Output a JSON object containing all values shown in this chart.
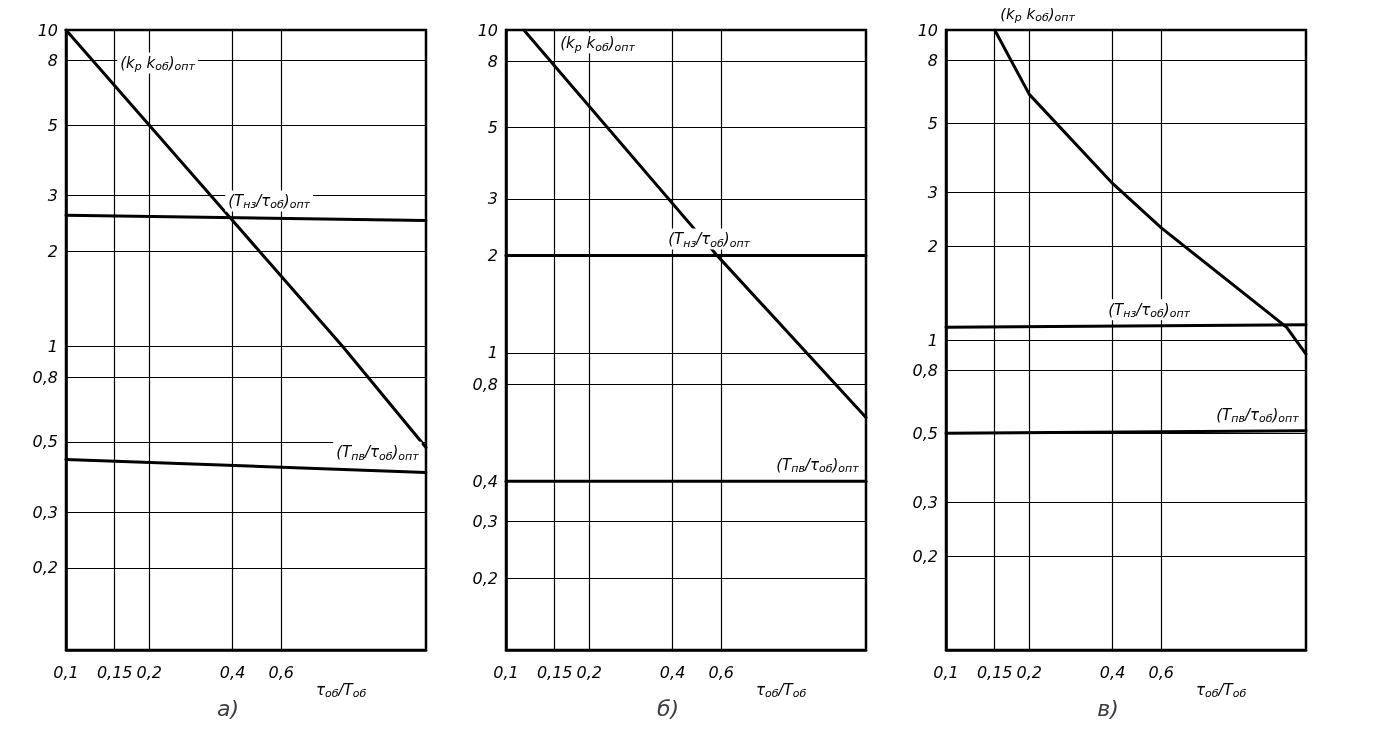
{
  "chart_data": [
    {
      "type": "line",
      "title": "а)",
      "xlabel": "τ$_{об}$/T$_{об}$",
      "log": "xy",
      "grid": true,
      "marker": "none",
      "line_style": "solid",
      "xlim": [
        0.1,
        2
      ],
      "ylim": [
        0.11,
        10
      ],
      "xticks": [
        {
          "value": 0.1,
          "label": "0,1"
        },
        {
          "value": 0.15,
          "label": "0,15"
        },
        {
          "value": 0.2,
          "label": "0,2"
        },
        {
          "value": 0.4,
          "label": "0,4"
        },
        {
          "value": 0.6,
          "label": "0,6"
        }
      ],
      "yticks": [
        {
          "value": 0.2,
          "label": "0,2"
        },
        {
          "value": 0.3,
          "label": "0,3"
        },
        {
          "value": 0.5,
          "label": "0,5"
        },
        {
          "value": 0.8,
          "label": "0,8"
        },
        1,
        2,
        3,
        5,
        8,
        10
      ],
      "series": [
        {
          "name": "(k$_{р}$ k$_{об}$)$_{опт}$",
          "color": "#000000",
          "x": [
            0.1,
            0.4,
            1,
            2
          ],
          "values": [
            10,
            2.5,
            1,
            0.48
          ]
        },
        {
          "name": "(T$_{нз}$/τ$_{об}$)$_{опт}$",
          "color": "#000000",
          "x": [
            0.1,
            2
          ],
          "values": [
            2.6,
            2.5
          ]
        },
        {
          "name": "(T$_{пв}$/τ$_{об}$)$_{опт}$",
          "color": "#000000",
          "x": [
            0.1,
            2
          ],
          "values": [
            0.44,
            0.4
          ]
        }
      ]
    },
    {
      "type": "line",
      "title": "б)",
      "xlabel": "τ$_{об}$/T$_{об}$",
      "log": "xy",
      "grid": true,
      "marker": "none",
      "line_style": "solid",
      "xlim": [
        0.1,
        2
      ],
      "ylim": [
        0.12,
        10
      ],
      "xticks": [
        {
          "value": 0.1,
          "label": "0,1"
        },
        {
          "value": 0.15,
          "label": "0,15"
        },
        {
          "value": 0.2,
          "label": "0,2"
        },
        {
          "value": 0.4,
          "label": "0,4"
        },
        {
          "value": 0.6,
          "label": "0,6"
        }
      ],
      "yticks": [
        {
          "value": 0.2,
          "label": "0,2"
        },
        {
          "value": 0.3,
          "label": "0,3"
        },
        {
          "value": 0.4,
          "label": "0,4"
        },
        {
          "value": 0.8,
          "label": "0,8"
        },
        1,
        2,
        3,
        5,
        8,
        10
      ],
      "series": [
        {
          "name": "(k$_{р}$ k$_{об}$)$_{опт}$",
          "color": "#000000",
          "x": [
            0.116,
            0.58,
            2
          ],
          "values": [
            10,
            2,
            0.63
          ]
        },
        {
          "name": "(T$_{нз}$/τ$_{об}$)$_{опт}$",
          "color": "#000000",
          "x": [
            0.1,
            2
          ],
          "values": [
            2,
            2
          ]
        },
        {
          "name": "(T$_{пв}$/τ$_{об}$)$_{опт}$",
          "color": "#000000",
          "x": [
            0.1,
            2
          ],
          "values": [
            0.4,
            0.4
          ]
        }
      ]
    },
    {
      "type": "line",
      "title": "в)",
      "xlabel": "τ$_{об}$/T$_{об}$",
      "log": "xy",
      "grid": true,
      "marker": "none",
      "line_style": "solid",
      "xlim": [
        0.1,
        2
      ],
      "ylim": [
        0.1,
        10
      ],
      "xticks": [
        {
          "value": 0.1,
          "label": "0,1"
        },
        {
          "value": 0.15,
          "label": "0,15"
        },
        {
          "value": 0.2,
          "label": "0,2"
        },
        {
          "value": 0.4,
          "label": "0,4"
        },
        {
          "value": 0.6,
          "label": "0,6"
        }
      ],
      "yticks": [
        {
          "value": 0.2,
          "label": "0,2"
        },
        {
          "value": 0.3,
          "label": "0,3"
        },
        {
          "value": 0.5,
          "label": "0,5"
        },
        {
          "value": 0.8,
          "label": "0,8"
        },
        1,
        2,
        3,
        5,
        8,
        10
      ],
      "series": [
        {
          "name": "(k$_{р}$ k$_{об}$)$_{опт}$",
          "color": "#000000",
          "x": [
            0.15,
            0.2,
            0.4,
            0.6,
            1.7,
            2
          ],
          "values": [
            10,
            6.2,
            3.2,
            2.3,
            1.1,
            0.9
          ]
        },
        {
          "name": "(T$_{нз}$/τ$_{об}$)$_{опт}$",
          "color": "#000000",
          "x": [
            0.1,
            2
          ],
          "values": [
            1.1,
            1.12
          ]
        },
        {
          "name": "(T$_{пв}$/τ$_{об}$)$_{опт}$",
          "color": "#000000",
          "x": [
            0.1,
            2
          ],
          "values": [
            0.5,
            0.51
          ]
        }
      ]
    }
  ]
}
